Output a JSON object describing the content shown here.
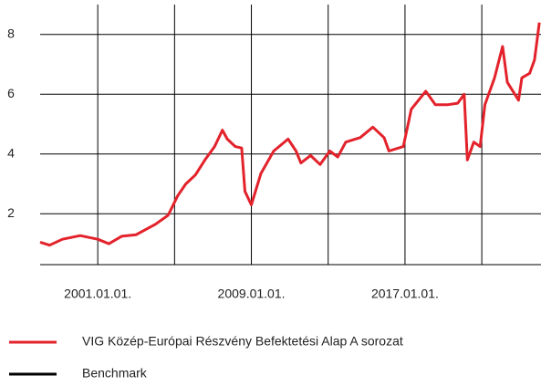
{
  "chart_data": {
    "type": "line",
    "x": [
      "1998-01-01",
      "1998-07-01",
      "1999-03-01",
      "2000-02-01",
      "2001-01-01",
      "2001-08-01",
      "2002-04-01",
      "2003-01-01",
      "2004-01-01",
      "2004-09-01",
      "2005-03-01",
      "2005-08-01",
      "2006-02-01",
      "2006-08-01",
      "2007-02-01",
      "2007-07-01",
      "2007-10-01",
      "2008-03-01",
      "2008-07-01",
      "2008-09-01",
      "2009-01-01",
      "2009-07-01",
      "2010-03-01",
      "2010-12-01",
      "2011-05-01",
      "2011-08-01",
      "2012-02-01",
      "2012-08-01",
      "2013-02-01",
      "2013-07-01",
      "2013-12-01",
      "2014-09-01",
      "2015-05-01",
      "2015-12-01",
      "2016-03-01",
      "2016-12-01",
      "2017-05-01",
      "2018-02-01",
      "2018-08-01",
      "2019-04-01",
      "2019-10-01",
      "2020-02-01",
      "2020-04-01",
      "2020-08-01",
      "2020-12-01",
      "2021-03-01",
      "2021-09-01",
      "2022-02-01",
      "2022-05-01",
      "2022-12-01",
      "2023-02-01",
      "2023-07-01",
      "2023-10-01",
      "2024-01-01"
    ],
    "series": [
      {
        "name": "VIG Közép-Európai Részvény Befektetési Alap A sorozat",
        "color": "#e3222b",
        "values": [
          1.05,
          0.95,
          1.15,
          1.27,
          1.15,
          1.0,
          1.25,
          1.3,
          1.65,
          1.95,
          2.6,
          3.0,
          3.3,
          3.8,
          4.25,
          4.8,
          4.5,
          4.25,
          4.2,
          2.75,
          2.3,
          3.35,
          4.1,
          4.5,
          4.1,
          3.7,
          3.95,
          3.65,
          4.1,
          3.9,
          4.4,
          4.55,
          4.9,
          4.55,
          4.1,
          4.25,
          5.5,
          6.1,
          5.65,
          5.65,
          5.7,
          6.0,
          3.8,
          4.4,
          4.25,
          5.65,
          6.55,
          7.6,
          6.4,
          5.8,
          6.55,
          6.7,
          7.15,
          8.4
        ]
      },
      {
        "name": "Benchmark",
        "color": "#000000",
        "values": [
          null,
          null,
          null,
          null,
          null,
          null,
          null,
          null,
          null,
          null,
          null,
          null,
          null,
          null,
          null,
          null,
          null,
          null,
          null,
          null,
          null,
          null,
          null,
          null,
          null,
          null,
          null,
          null,
          null,
          null,
          null,
          null,
          null,
          null,
          null,
          null,
          null,
          null,
          null,
          null,
          null,
          null,
          null,
          null,
          null,
          null,
          null,
          null,
          null,
          null,
          null,
          null,
          null,
          null
        ]
      }
    ],
    "xlim": [
      "1998-01-01",
      "2024-02-01"
    ],
    "xticks": [
      {
        "value": "2001-01-01",
        "label": "2001.01.01."
      },
      {
        "value": "2005-01-01",
        "label": null
      },
      {
        "value": "2009-01-01",
        "label": "2009.01.01."
      },
      {
        "value": "2013-01-01",
        "label": null
      },
      {
        "value": "2017-01-01",
        "label": "2017.01.01."
      },
      {
        "value": "2021-01-01",
        "label": null
      }
    ],
    "ylim": [
      0.3,
      9
    ],
    "yticks": [
      2,
      4,
      6,
      8
    ],
    "grid": true
  }
}
